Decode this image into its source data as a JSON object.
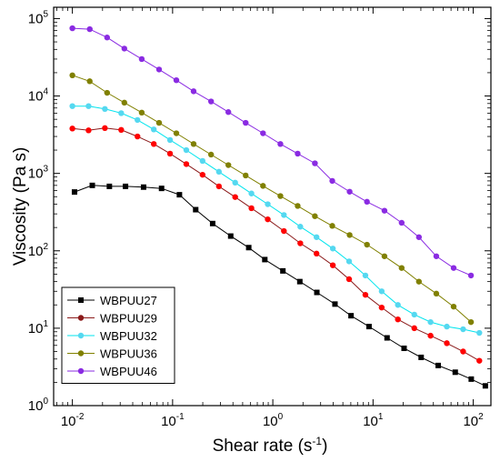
{
  "chart_data": {
    "type": "line",
    "xlabel": "Shear rate (s",
    "xlabel_sup": "-1",
    "xlabel_end": ")",
    "ylabel": "Viscosity (Pa s)",
    "xscale": "log",
    "yscale": "log",
    "xlim": [
      0.0065,
      150
    ],
    "ylim": [
      1,
      140000
    ],
    "xticks": [
      {
        "base": "10",
        "exp": "-2",
        "value": 0.01
      },
      {
        "base": "10",
        "exp": "-1",
        "value": 0.1
      },
      {
        "base": "10",
        "exp": "0",
        "value": 1
      },
      {
        "base": "10",
        "exp": "1",
        "value": 10
      },
      {
        "base": "10",
        "exp": "2",
        "value": 100
      }
    ],
    "yticks": [
      {
        "base": "10",
        "exp": "0",
        "value": 1
      },
      {
        "base": "10",
        "exp": "1",
        "value": 10
      },
      {
        "base": "10",
        "exp": "2",
        "value": 100
      },
      {
        "base": "10",
        "exp": "3",
        "value": 1000
      },
      {
        "base": "10",
        "exp": "4",
        "value": 10000
      },
      {
        "base": "10",
        "exp": "5",
        "value": 100000
      }
    ],
    "grid": false,
    "legend_position": "bottom-left",
    "series": [
      {
        "name": "WBPUU27",
        "color": "#000000",
        "marker": "square",
        "x": [
          0.0105,
          0.0158,
          0.0234,
          0.0339,
          0.0513,
          0.0776,
          0.117,
          0.17,
          0.251,
          0.38,
          0.575,
          0.832,
          1.26,
          1.86,
          2.75,
          4.17,
          6.03,
          9.12,
          13.8,
          20.4,
          30.2,
          44.7,
          66.1,
          95.5,
          132
        ],
        "y": [
          575,
          700,
          680,
          680,
          665,
          640,
          530,
          340,
          225,
          155,
          110,
          77,
          55,
          40,
          29,
          20.5,
          14.5,
          10.5,
          7.5,
          5.5,
          4.2,
          3.3,
          2.7,
          2.2,
          1.8
        ]
      },
      {
        "name": "WBPUU29",
        "color": "#8b1a1a",
        "marker": "circle",
        "x": [
          0.01,
          0.0145,
          0.0211,
          0.0307,
          0.0446,
          0.0649,
          0.0943,
          0.137,
          0.199,
          0.29,
          0.421,
          0.612,
          0.89,
          1.29,
          1.88,
          2.73,
          3.97,
          5.77,
          8.39,
          12.2,
          17.7,
          25.8,
          37.5,
          54.5,
          79.2,
          115
        ],
        "y": [
          3800,
          3600,
          3850,
          3650,
          3000,
          2400,
          1800,
          1320,
          960,
          680,
          495,
          355,
          255,
          180,
          125,
          92,
          65,
          43,
          27,
          18.5,
          13,
          10,
          8,
          6.4,
          5,
          3.8
        ],
        "sub_colors": [
          "#000000",
          "#ff0000"
        ]
      },
      {
        "name": "WBPUU32",
        "color": "#00e5ee",
        "marker": "circle",
        "x": [
          0.01,
          0.0145,
          0.0211,
          0.0307,
          0.0446,
          0.0649,
          0.0943,
          0.137,
          0.199,
          0.29,
          0.421,
          0.612,
          0.89,
          1.29,
          1.88,
          2.73,
          3.97,
          5.77,
          8.39,
          12.2,
          17.7,
          25.8,
          37.5,
          54.5,
          79.2,
          115
        ],
        "y": [
          7400,
          7400,
          6800,
          6000,
          4900,
          3700,
          2700,
          2000,
          1450,
          1050,
          760,
          550,
          400,
          290,
          205,
          150,
          107,
          73,
          48,
          30,
          20,
          15,
          12,
          10.5,
          9.7,
          8.7
        ],
        "sub_colors": [
          "#00e5ee",
          "#87ceeb"
        ]
      },
      {
        "name": "WBPUU36",
        "color": "#808000",
        "marker": "circle",
        "x": [
          0.01,
          0.0149,
          0.0222,
          0.033,
          0.0492,
          0.0733,
          0.109,
          0.162,
          0.242,
          0.36,
          0.536,
          0.798,
          1.19,
          1.77,
          2.63,
          3.92,
          5.84,
          8.7,
          13.0,
          19.3,
          28.7,
          42.8,
          63.7,
          94.9
        ],
        "y": [
          18500,
          15500,
          11000,
          8200,
          6100,
          4500,
          3300,
          2400,
          1750,
          1280,
          940,
          690,
          510,
          380,
          280,
          210,
          160,
          120,
          85,
          60,
          40,
          28,
          19,
          12
        ]
      },
      {
        "name": "WBPUU46",
        "color": "#8a2be2",
        "marker": "circle",
        "x": [
          0.01,
          0.0149,
          0.0222,
          0.033,
          0.0492,
          0.0733,
          0.109,
          0.162,
          0.242,
          0.36,
          0.536,
          0.798,
          1.19,
          1.77,
          2.63,
          3.92,
          5.84,
          8.7,
          13.0,
          19.3,
          28.7,
          42.8,
          63.7,
          94.9
        ],
        "y": [
          75000,
          73000,
          57000,
          41000,
          30000,
          22000,
          16000,
          11500,
          8500,
          6200,
          4500,
          3300,
          2400,
          1800,
          1350,
          800,
          580,
          430,
          330,
          230,
          150,
          85,
          60,
          48
        ]
      }
    ]
  }
}
